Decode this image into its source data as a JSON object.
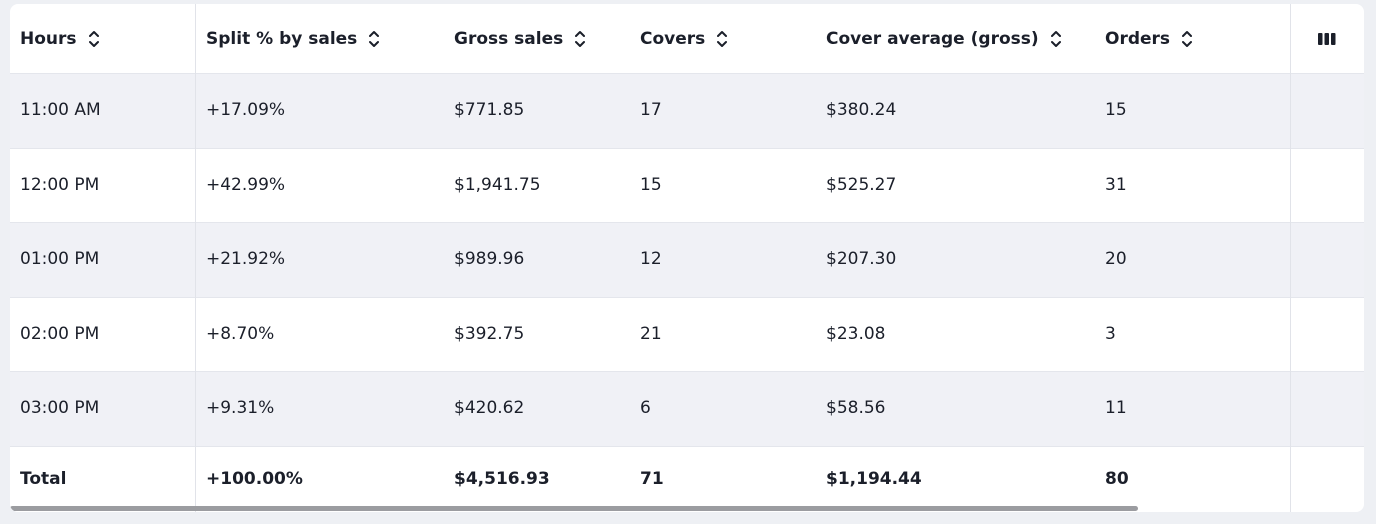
{
  "table": {
    "columns": [
      "Hours",
      "Split % by sales",
      "Gross sales",
      "Covers",
      "Cover average (gross)",
      "Orders"
    ],
    "rows": [
      [
        "11:00 AM",
        "+17.09%",
        "$771.85",
        "17",
        "$380.24",
        "15"
      ],
      [
        "12:00 PM",
        "+42.99%",
        "$1,941.75",
        "15",
        "$525.27",
        "31"
      ],
      [
        "01:00 PM",
        "+21.92%",
        "$989.96",
        "12",
        "$207.30",
        "20"
      ],
      [
        "02:00 PM",
        "+8.70%",
        "$392.75",
        "21",
        "$23.08",
        "3"
      ],
      [
        "03:00 PM",
        "+9.31%",
        "$420.62",
        "6",
        "$58.56",
        "11"
      ]
    ],
    "total": [
      "Total",
      "+100.00%",
      "$4,516.93",
      "71",
      "$1,194.44",
      "80"
    ]
  }
}
